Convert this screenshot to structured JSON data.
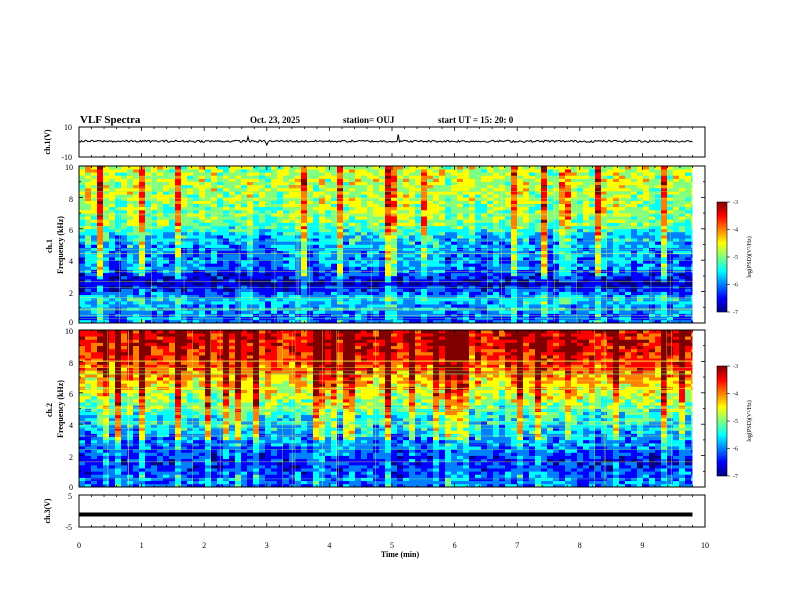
{
  "header": {
    "title": "VLF Spectra",
    "date": "Oct. 23, 2025",
    "station": "station= OUJ",
    "start_ut": "start  UT  =   15: 20: 0"
  },
  "colorbar": {
    "label": "log(PSD)(V²/Hz)",
    "ticks": [
      "-3",
      "-4",
      "-5",
      "-6",
      "-7"
    ],
    "colormap": [
      "#000080",
      "#0000ff",
      "#0080ff",
      "#00ffff",
      "#80ff80",
      "#ffff00",
      "#ff8000",
      "#ff0000",
      "#800000"
    ]
  },
  "chart_data": [
    {
      "type": "line",
      "panel": "ch1-waveform",
      "ylabel": "ch.1(V)",
      "ylim": [
        -10,
        10
      ],
      "ytick_labels": [
        "10",
        "-10"
      ],
      "x": [
        0,
        2.7,
        3.0,
        3.3,
        5.1,
        5.9,
        9.8
      ],
      "y": [
        0.5,
        3.5,
        -2.0,
        0.5,
        5.0,
        1.0,
        0.5
      ],
      "baseline_approx": 0.5
    },
    {
      "type": "heatmap",
      "panel": "ch1-spectrogram",
      "ylabel": "ch.1 Frequency (kHz)",
      "ylim": [
        0,
        10
      ],
      "ytick_labels": [
        "0",
        "2",
        "4",
        "6",
        "8",
        "10"
      ],
      "clim": [
        -7,
        -3
      ],
      "mean_log_psd_by_freq_khz": {
        "0.5": -6.0,
        "1.5": -5.6,
        "2.5": -6.6,
        "3.5": -5.9,
        "4.5": -5.9,
        "5.5": -5.6,
        "6.5": -5.0,
        "7.5": -4.9,
        "8.5": -4.8,
        "9.5": -4.8
      }
    },
    {
      "type": "heatmap",
      "panel": "ch2-spectrogram",
      "ylabel": "ch.2 Frequency (kHz)",
      "ylim": [
        0,
        10
      ],
      "ytick_labels": [
        "0",
        "2",
        "4",
        "6",
        "8",
        "10"
      ],
      "clim": [
        -7,
        -3
      ],
      "mean_log_psd_by_freq_khz": {
        "0.5": -6.0,
        "1.5": -6.3,
        "2.5": -6.0,
        "3.5": -5.7,
        "4.5": -5.4,
        "5.5": -4.9,
        "6.5": -4.5,
        "7.5": -4.0,
        "8.5": -3.7,
        "9.5": -3.6
      }
    },
    {
      "type": "line",
      "panel": "ch3-waveform",
      "ylabel": "ch.3(V)",
      "ylim": [
        -5,
        5
      ],
      "ytick_labels": [
        "5",
        "-5"
      ],
      "x": [
        0,
        9.8
      ],
      "y": [
        -1.1,
        -1.1
      ]
    }
  ],
  "x_axis": {
    "label": "Time (min)",
    "xlim": [
      0,
      10
    ],
    "tick_labels": [
      "0",
      "1",
      "2",
      "3",
      "4",
      "5",
      "6",
      "7",
      "8",
      "9",
      "10"
    ],
    "data_end": 9.8
  }
}
